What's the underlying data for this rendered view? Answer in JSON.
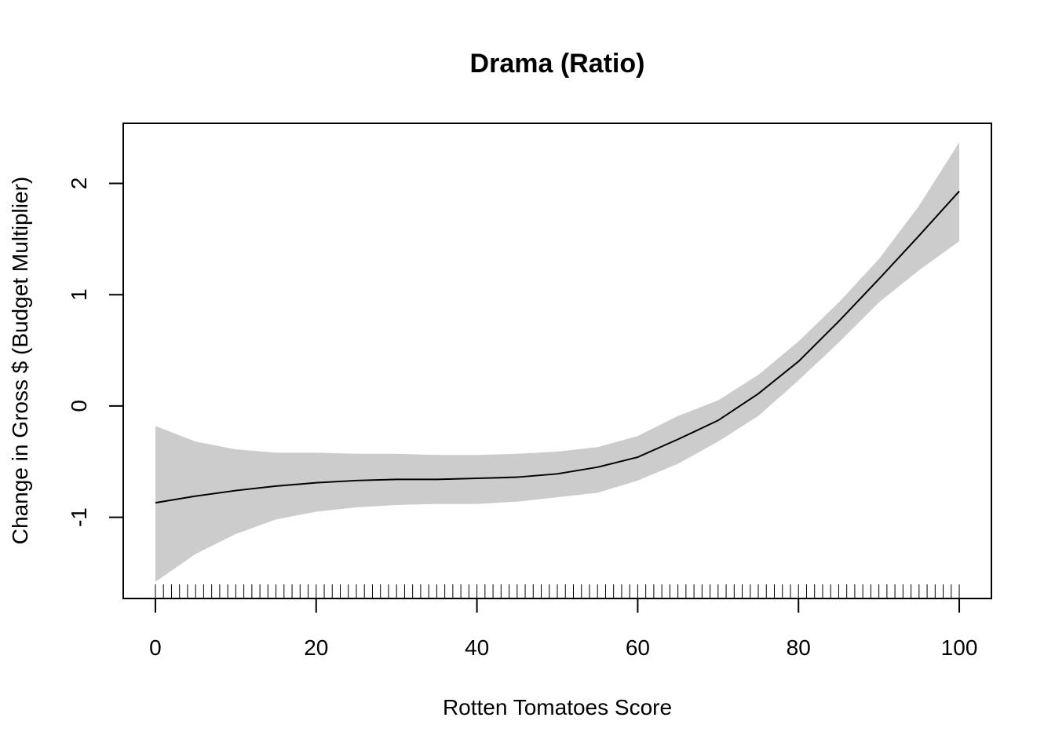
{
  "chart_data": {
    "type": "line",
    "title": "Drama (Ratio)",
    "x_label": "Rotten Tomatoes Score",
    "y_label": "Change in Gross $ (Budget Multiplier)",
    "x": [
      0,
      5,
      10,
      15,
      20,
      25,
      30,
      35,
      40,
      45,
      50,
      55,
      60,
      65,
      70,
      75,
      80,
      85,
      90,
      95,
      100
    ],
    "values": [
      -0.87,
      -0.81,
      -0.76,
      -0.72,
      -0.69,
      -0.67,
      -0.66,
      -0.66,
      -0.65,
      -0.64,
      -0.61,
      -0.55,
      -0.46,
      -0.3,
      -0.13,
      0.11,
      0.4,
      0.76,
      1.14,
      1.53,
      1.93
    ],
    "lower": [
      -1.58,
      -1.33,
      -1.15,
      -1.02,
      -0.95,
      -0.91,
      -0.89,
      -0.88,
      -0.88,
      -0.86,
      -0.82,
      -0.78,
      -0.67,
      -0.52,
      -0.32,
      -0.09,
      0.23,
      0.57,
      0.93,
      1.22,
      1.48
    ],
    "upper": [
      -0.18,
      -0.32,
      -0.39,
      -0.42,
      -0.42,
      -0.43,
      -0.43,
      -0.44,
      -0.44,
      -0.43,
      -0.41,
      -0.37,
      -0.27,
      -0.09,
      0.05,
      0.28,
      0.58,
      0.93,
      1.32,
      1.8,
      2.37
    ],
    "rug": [
      0,
      1,
      2,
      3,
      4,
      5,
      6,
      7,
      8,
      9,
      10,
      11,
      12,
      13,
      14,
      15,
      16,
      17,
      18,
      19,
      20,
      21,
      22,
      23,
      24,
      25,
      26,
      27,
      28,
      29,
      30,
      31,
      32,
      33,
      34,
      35,
      36,
      37,
      38,
      39,
      40,
      41,
      42,
      43,
      44,
      45,
      46,
      47,
      48,
      49,
      50,
      51,
      52,
      53,
      54,
      55,
      56,
      57,
      58,
      59,
      60,
      61,
      62,
      63,
      64,
      65,
      66,
      67,
      68,
      69,
      70,
      71,
      72,
      73,
      74,
      75,
      76,
      77,
      78,
      79,
      80,
      81,
      82,
      83,
      84,
      85,
      86,
      87,
      88,
      89,
      90,
      91,
      92,
      93,
      94,
      95,
      96,
      97,
      98,
      99,
      100
    ],
    "color": "#000000",
    "band_color": "#cccccc",
    "xlim": [
      -4,
      104
    ],
    "ylim": [
      -1.73,
      2.54
    ],
    "xticks": [
      0,
      20,
      40,
      60,
      80,
      100
    ],
    "yticks": [
      -1,
      0,
      1,
      2
    ]
  }
}
